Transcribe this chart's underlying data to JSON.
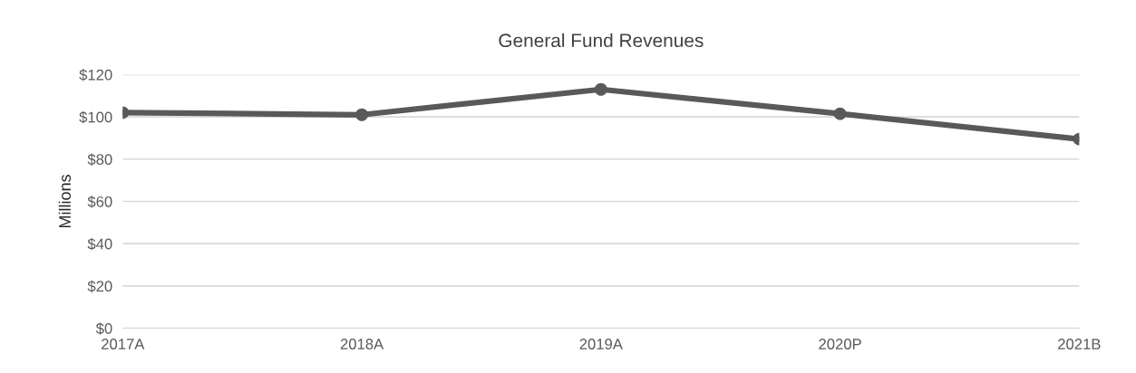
{
  "chart_data": {
    "type": "line",
    "title": "General Fund Revenues",
    "ylabel": "Millions",
    "categories": [
      "2017A",
      "2018A",
      "2019A",
      "2020P",
      "2021B"
    ],
    "series": [
      {
        "color": "#595959",
        "values": [
          102,
          101,
          113,
          101.5,
          89.5
        ]
      }
    ],
    "ylim": [
      0,
      120
    ],
    "yticks": [
      {
        "value": 0,
        "label": "$0"
      },
      {
        "value": 20,
        "label": "$20"
      },
      {
        "value": 40,
        "label": "$40"
      },
      {
        "value": 60,
        "label": "$60"
      },
      {
        "value": 80,
        "label": "$80"
      },
      {
        "value": 100,
        "label": "$100"
      },
      {
        "value": 120,
        "label": "$120"
      }
    ],
    "grid": "y",
    "marker": "circle",
    "line_style": "solid"
  }
}
